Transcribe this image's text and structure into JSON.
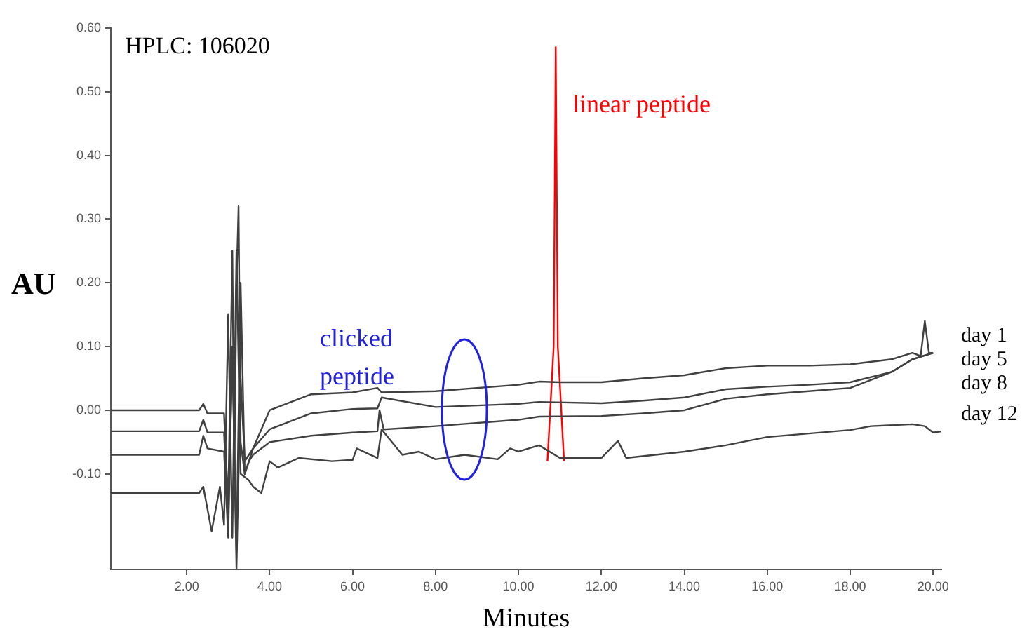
{
  "chart_data": {
    "type": "line",
    "title": "HPLC: 106020",
    "xlabel": "Minutes",
    "ylabel": "AU",
    "xlim": [
      0.17,
      20.2
    ],
    "ylim": [
      -0.25,
      0.6
    ],
    "xticks": [
      {
        "value": 2,
        "label": "2.00"
      },
      {
        "value": 4,
        "label": "4.00"
      },
      {
        "value": 6,
        "label": "6.00"
      },
      {
        "value": 8,
        "label": "8.00"
      },
      {
        "value": 10,
        "label": "10.00"
      },
      {
        "value": 12,
        "label": "12.00"
      },
      {
        "value": 14,
        "label": "14.00"
      },
      {
        "value": 16,
        "label": "16.00"
      },
      {
        "value": 18,
        "label": "18.00"
      },
      {
        "value": 20,
        "label": "20.00"
      }
    ],
    "yticks": [
      {
        "value": -0.1,
        "label": "-0.10"
      },
      {
        "value": 0,
        "label": "0.00"
      },
      {
        "value": 0.1,
        "label": "0.10"
      },
      {
        "value": 0.2,
        "label": "0.20"
      },
      {
        "value": 0.3,
        "label": "0.30"
      },
      {
        "value": 0.4,
        "label": "0.40"
      },
      {
        "value": 0.5,
        "label": "0.50"
      },
      {
        "value": 0.6,
        "label": "0.60"
      }
    ],
    "grid": false,
    "legend": false,
    "marker": "none",
    "line_style": "solid",
    "series": [
      {
        "name": "day 1",
        "color": "#404040",
        "x": [
          0.17,
          2.3,
          2.4,
          2.5,
          2.9,
          3.0,
          3.1,
          3.15,
          3.2,
          3.25,
          3.3,
          3.4,
          3.6,
          4,
          5,
          6,
          6.6,
          6.7,
          8,
          10,
          10.5,
          11,
          12,
          13,
          14,
          15,
          16,
          17,
          18,
          19,
          19.5,
          19.7,
          19.8,
          19.9,
          20.0
        ],
        "values": [
          0,
          0,
          0.01,
          -0.005,
          -0.005,
          -0.15,
          0.25,
          -0.1,
          0.2,
          0.32,
          -0.05,
          -0.1,
          -0.06,
          0,
          0.025,
          0.028,
          0.035,
          0.028,
          0.03,
          0.04,
          0.045,
          0.044,
          0.044,
          0.05,
          0.055,
          0.066,
          0.07,
          0.07,
          0.072,
          0.08,
          0.09,
          0.085,
          0.14,
          0.09,
          0.09
        ]
      },
      {
        "name": "day 5",
        "color": "#404040",
        "x": [
          0.17,
          2.3,
          2.4,
          2.5,
          2.9,
          3.0,
          3.1,
          3.2,
          3.3,
          3.4,
          3.5,
          3.6,
          4,
          5,
          6,
          6.6,
          6.7,
          8,
          10,
          10.5,
          12,
          13,
          14,
          15,
          16,
          17,
          18,
          19,
          19.5,
          20.0
        ],
        "values": [
          -0.033,
          -0.033,
          -0.015,
          -0.035,
          -0.035,
          -0.18,
          0.1,
          -0.25,
          0.05,
          -0.08,
          -0.07,
          -0.06,
          -0.03,
          -0.005,
          0.002,
          0.003,
          0.02,
          0.005,
          0.01,
          0.013,
          0.011,
          0.015,
          0.02,
          0.033,
          0.037,
          0.04,
          0.044,
          0.06,
          0.08,
          0.09
        ]
      },
      {
        "name": "day 8",
        "color": "#404040",
        "x": [
          0.17,
          2.3,
          2.4,
          2.5,
          2.9,
          3.0,
          3.1,
          3.2,
          3.3,
          3.4,
          3.5,
          3.6,
          4,
          5,
          6,
          6.6,
          6.65,
          6.75,
          8,
          10,
          10.5,
          12,
          13,
          14,
          15,
          16,
          17,
          18,
          19,
          19.5,
          20.0
        ],
        "values": [
          -0.07,
          -0.07,
          -0.04,
          -0.06,
          -0.065,
          -0.2,
          0.1,
          -0.22,
          0.2,
          -0.1,
          -0.08,
          -0.07,
          -0.05,
          -0.04,
          -0.035,
          -0.033,
          0.0,
          -0.03,
          -0.025,
          -0.015,
          -0.01,
          -0.009,
          -0.005,
          0.0,
          0.018,
          0.025,
          0.03,
          0.035,
          0.06,
          0.08,
          0.09
        ]
      },
      {
        "name": "day 12",
        "color": "#404040",
        "x": [
          0.17,
          2.3,
          2.4,
          2.6,
          2.8,
          2.9,
          3.0,
          3.1,
          3.2,
          3.3,
          3.5,
          3.6,
          3.8,
          4.0,
          4.2,
          4.7,
          5.5,
          6.0,
          6.1,
          6.6,
          6.7,
          7.2,
          7.6,
          8,
          8.7,
          9.5,
          9.8,
          10.0,
          10.5,
          11,
          12,
          12.4,
          12.6,
          14,
          15,
          16,
          18,
          18.5,
          19.5,
          19.8,
          20.0,
          20.2
        ],
        "values": [
          -0.13,
          -0.13,
          -0.12,
          -0.19,
          -0.12,
          -0.18,
          0.15,
          -0.2,
          0.25,
          -0.1,
          -0.11,
          -0.12,
          -0.13,
          -0.08,
          -0.09,
          -0.075,
          -0.08,
          -0.078,
          -0.06,
          -0.075,
          -0.03,
          -0.07,
          -0.065,
          -0.077,
          -0.07,
          -0.077,
          -0.06,
          -0.065,
          -0.055,
          -0.075,
          -0.075,
          -0.048,
          -0.075,
          -0.065,
          -0.055,
          -0.042,
          -0.031,
          -0.025,
          -0.022,
          -0.025,
          -0.035,
          -0.033
        ]
      },
      {
        "color": "#ff0000",
        "x": [
          10.7,
          10.85,
          10.9,
          10.95,
          11.1
        ],
        "values": [
          -0.08,
          0.1,
          0.57,
          0.1,
          -0.08
        ]
      }
    ],
    "annotations": [
      "clicked\npeptide",
      "linear peptide"
    ]
  }
}
